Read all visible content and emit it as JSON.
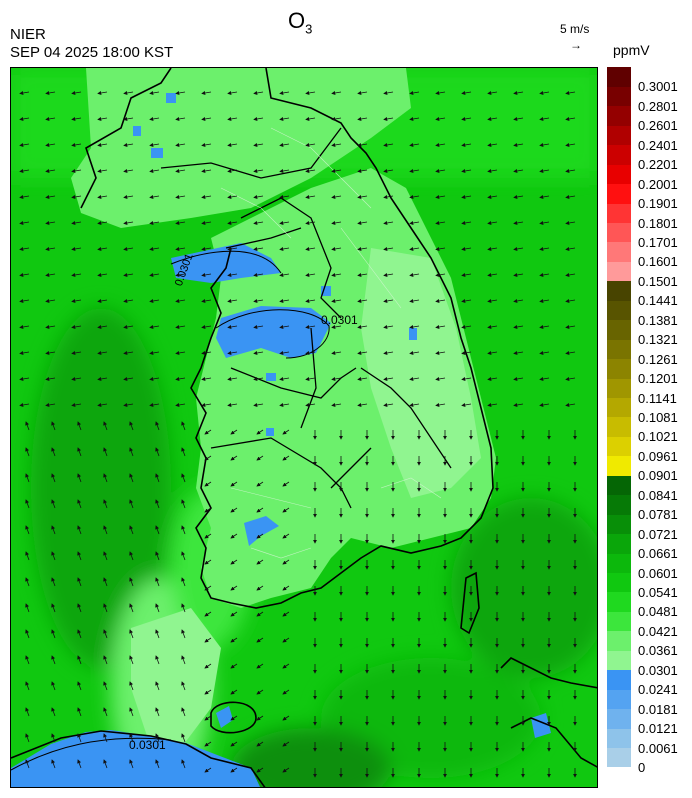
{
  "header": {
    "org": "NIER",
    "time": "SEP 04 2025 18:00 KST",
    "title_main": "O",
    "title_sub": "3",
    "wind_ref": "5 m/s",
    "wind_arrow": "→",
    "unit": "ppmV"
  },
  "map": {
    "contour_label_1": "0.0301",
    "contour_label_2": "0.0301",
    "contour_label_3": "0.0301"
  },
  "colorbar": {
    "levels": [
      "0",
      "0.0061",
      "0.0121",
      "0.0181",
      "0.0241",
      "0.0301",
      "0.0361",
      "0.0421",
      "0.0481",
      "0.0541",
      "0.0601",
      "0.0661",
      "0.0721",
      "0.0781",
      "0.0841",
      "0.0901",
      "0.0961",
      "0.1021",
      "0.1081",
      "0.1141",
      "0.1201",
      "0.1261",
      "0.1321",
      "0.1381",
      "0.1441",
      "0.1501",
      "0.1601",
      "0.1701",
      "0.1801",
      "0.1901",
      "0.2001",
      "0.2201",
      "0.2401",
      "0.2601",
      "0.2801",
      "0.3001"
    ],
    "colors": [
      "#a9cfe8",
      "#8ec3ea",
      "#6fb2ee",
      "#54a3f1",
      "#3a94f3",
      "#90f590",
      "#6cf06c",
      "#3ce63c",
      "#1fd91f",
      "#10c810",
      "#0cb80c",
      "#0aa60a",
      "#088f08",
      "#067a06",
      "#056605",
      "#f0ea00",
      "#dcd000",
      "#c8bc00",
      "#b4a800",
      "#a09600",
      "#8c8400",
      "#7a7400",
      "#686400",
      "#585400",
      "#484400",
      "#ff9a9a",
      "#ff7878",
      "#ff5656",
      "#ff3434",
      "#ff1010",
      "#e80000",
      "#cc0000",
      "#b00000",
      "#940000",
      "#780000",
      "#600000"
    ]
  }
}
